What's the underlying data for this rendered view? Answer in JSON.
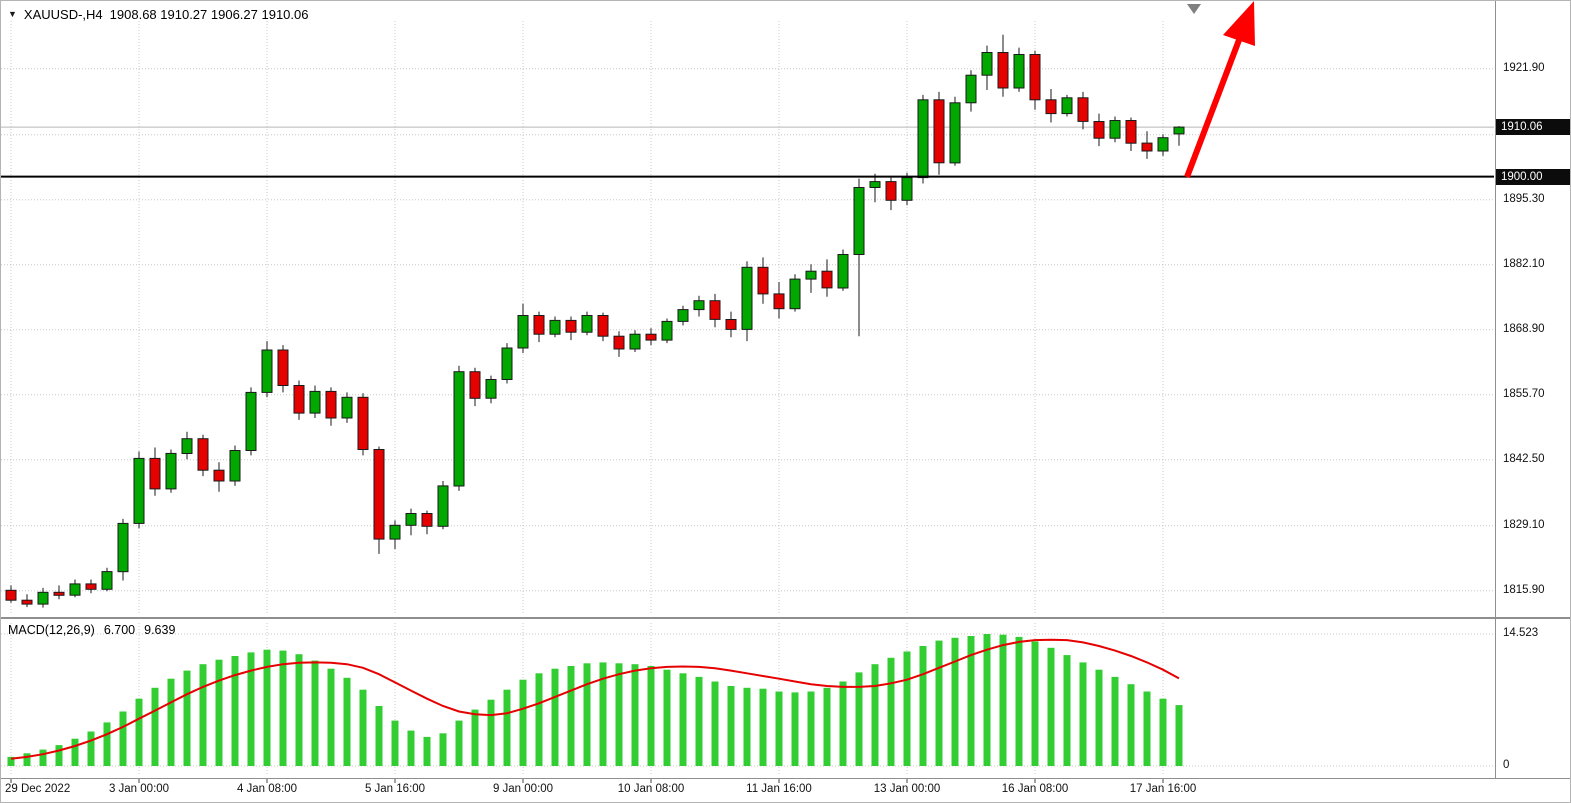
{
  "colors": {
    "bull": "#00a800",
    "bear": "#e60000",
    "wick": "#1a1a1a",
    "grid": "#c8c8c8",
    "macd_hist": "#32cd32",
    "macd_signal": "#e60000",
    "level_line": "#000000",
    "bid_line": "#b8b8b8",
    "badge_bg": "#0c0c0c",
    "badge_text": "#ffffff",
    "arrow": "#ff0000",
    "marker": "#808080",
    "axis_text": "#111111"
  },
  "header": {
    "symbol_marker": "▼",
    "title": "XAUUSD-,H4",
    "ohlc": "1908.68 1910.27 1906.27 1910.06"
  },
  "price_axis": {
    "labels": [
      {
        "text": "1921.90",
        "value": 1921.9
      },
      {
        "text": "1895.30",
        "value": 1895.3
      },
      {
        "text": "1882.10",
        "value": 1882.1
      },
      {
        "text": "1868.90",
        "value": 1868.9
      },
      {
        "text": "1855.70",
        "value": 1855.7
      },
      {
        "text": "1842.50",
        "value": 1842.5
      },
      {
        "text": "1829.10",
        "value": 1829.1
      },
      {
        "text": "1815.90",
        "value": 1815.9
      }
    ],
    "badges": [
      {
        "text": "1910.06",
        "value": 1910.06
      },
      {
        "text": "1900.00",
        "value": 1900.0
      }
    ]
  },
  "macd_panel": {
    "label": "MACD(12,26,9)",
    "value_main": "6.700",
    "value_signal": "9.639",
    "axis_labels": [
      {
        "text": "14.523",
        "value": 14.523
      },
      {
        "text": "0",
        "value": 0
      }
    ]
  },
  "time_axis": {
    "labels": [
      {
        "text": "29 Dec 2022",
        "index": 0
      },
      {
        "text": "3 Jan 00:00",
        "index": 8
      },
      {
        "text": "4 Jan 08:00",
        "index": 16
      },
      {
        "text": "5 Jan 16:00",
        "index": 24
      },
      {
        "text": "9 Jan 00:00",
        "index": 32
      },
      {
        "text": "10 Jan 08:00",
        "index": 40
      },
      {
        "text": "11 Jan 16:00",
        "index": 48
      },
      {
        "text": "13 Jan 00:00",
        "index": 56
      },
      {
        "text": "16 Jan 08:00",
        "index": 64
      },
      {
        "text": "17 Jan 16:00",
        "index": 72
      }
    ]
  },
  "annotations": {
    "trend_arrow": {
      "shape": "arrow",
      "direction": "up",
      "color": "#ff0000"
    },
    "chart_shift_marker": {
      "shape": "triangle-down",
      "color": "#808080"
    }
  },
  "chart_data": [
    {
      "type": "candlestick",
      "symbol": "XAUUSD-",
      "timeframe": "H4",
      "ylim": [
        1811.4,
        1931.6
      ],
      "grid_levels": [
        1921.9,
        1908.5,
        1895.3,
        1882.1,
        1868.9,
        1855.7,
        1842.5,
        1829.1,
        1815.9
      ],
      "levels": {
        "horizontal_line": 1900.0,
        "current_price": 1910.06
      },
      "current_ohlc": {
        "open": 1908.68,
        "high": 1910.27,
        "low": 1906.27,
        "close": 1910.06
      },
      "candles": [
        [
          1816.0,
          1817.0,
          1813.5,
          1814.0
        ],
        [
          1814.0,
          1815.2,
          1812.6,
          1813.2
        ],
        [
          1813.2,
          1816.5,
          1812.5,
          1815.6
        ],
        [
          1815.6,
          1817.0,
          1814.2,
          1815.0
        ],
        [
          1815.0,
          1818.2,
          1814.6,
          1817.3
        ],
        [
          1817.3,
          1818.2,
          1815.4,
          1816.2
        ],
        [
          1816.2,
          1820.6,
          1815.8,
          1819.8
        ],
        [
          1819.8,
          1830.5,
          1818.0,
          1829.6
        ],
        [
          1829.6,
          1844.2,
          1828.6,
          1842.8
        ],
        [
          1842.8,
          1845.0,
          1835.2,
          1836.6
        ],
        [
          1836.6,
          1844.6,
          1835.8,
          1843.8
        ],
        [
          1843.8,
          1848.2,
          1842.6,
          1846.8
        ],
        [
          1846.8,
          1847.6,
          1839.2,
          1840.4
        ],
        [
          1840.4,
          1842.0,
          1836.0,
          1838.2
        ],
        [
          1838.2,
          1845.4,
          1837.2,
          1844.4
        ],
        [
          1844.4,
          1857.2,
          1843.4,
          1856.2
        ],
        [
          1856.2,
          1866.6,
          1855.2,
          1864.8
        ],
        [
          1864.8,
          1865.8,
          1856.2,
          1857.6
        ],
        [
          1857.6,
          1858.6,
          1850.6,
          1852.0
        ],
        [
          1852.0,
          1857.6,
          1851.0,
          1856.4
        ],
        [
          1856.4,
          1857.2,
          1849.4,
          1851.0
        ],
        [
          1851.0,
          1856.2,
          1850.0,
          1855.2
        ],
        [
          1855.2,
          1856.0,
          1843.4,
          1844.6
        ],
        [
          1844.6,
          1845.2,
          1823.4,
          1826.4
        ],
        [
          1826.4,
          1830.2,
          1824.4,
          1829.2
        ],
        [
          1829.2,
          1832.6,
          1827.2,
          1831.6
        ],
        [
          1831.6,
          1832.2,
          1827.4,
          1829.0
        ],
        [
          1829.0,
          1838.2,
          1828.4,
          1837.2
        ],
        [
          1837.2,
          1861.6,
          1836.2,
          1860.4
        ],
        [
          1860.4,
          1861.2,
          1853.4,
          1855.0
        ],
        [
          1855.0,
          1859.6,
          1854.0,
          1858.8
        ],
        [
          1858.8,
          1866.2,
          1858.0,
          1865.2
        ],
        [
          1865.2,
          1874.2,
          1864.2,
          1871.8
        ],
        [
          1871.8,
          1872.6,
          1866.4,
          1868.0
        ],
        [
          1868.0,
          1871.6,
          1867.4,
          1870.8
        ],
        [
          1870.8,
          1871.6,
          1866.8,
          1868.4
        ],
        [
          1868.4,
          1872.6,
          1867.8,
          1871.8
        ],
        [
          1871.8,
          1872.4,
          1866.6,
          1867.6
        ],
        [
          1867.6,
          1868.6,
          1863.4,
          1865.0
        ],
        [
          1865.0,
          1868.8,
          1864.4,
          1868.0
        ],
        [
          1868.0,
          1869.2,
          1865.8,
          1866.8
        ],
        [
          1866.8,
          1871.2,
          1866.2,
          1870.6
        ],
        [
          1870.6,
          1873.8,
          1869.8,
          1873.0
        ],
        [
          1873.0,
          1875.8,
          1871.6,
          1874.8
        ],
        [
          1874.8,
          1876.2,
          1869.4,
          1871.0
        ],
        [
          1871.0,
          1872.6,
          1867.4,
          1869.0
        ],
        [
          1869.0,
          1882.8,
          1866.6,
          1881.6
        ],
        [
          1881.6,
          1883.6,
          1874.2,
          1876.2
        ],
        [
          1876.2,
          1878.6,
          1871.2,
          1873.2
        ],
        [
          1873.2,
          1880.2,
          1872.6,
          1879.2
        ],
        [
          1879.2,
          1882.2,
          1876.4,
          1880.8
        ],
        [
          1880.8,
          1883.2,
          1875.6,
          1877.4
        ],
        [
          1877.4,
          1885.2,
          1876.8,
          1884.2
        ],
        [
          1884.2,
          1899.6,
          1867.6,
          1897.8
        ],
        [
          1897.8,
          1900.6,
          1894.8,
          1899.0
        ],
        [
          1899.0,
          1899.8,
          1893.2,
          1895.2
        ],
        [
          1895.2,
          1900.8,
          1894.2,
          1899.8
        ],
        [
          1899.8,
          1916.6,
          1898.6,
          1915.6
        ],
        [
          1915.6,
          1917.2,
          1900.4,
          1902.8
        ],
        [
          1902.8,
          1916.2,
          1902.2,
          1915.0
        ],
        [
          1915.0,
          1921.6,
          1913.2,
          1920.6
        ],
        [
          1920.6,
          1926.6,
          1917.6,
          1925.2
        ],
        [
          1925.2,
          1928.8,
          1916.2,
          1918.0
        ],
        [
          1918.0,
          1926.2,
          1917.2,
          1924.8
        ],
        [
          1924.8,
          1925.6,
          1913.6,
          1915.6
        ],
        [
          1915.6,
          1917.8,
          1911.0,
          1912.8
        ],
        [
          1912.8,
          1916.6,
          1912.2,
          1916.0
        ],
        [
          1916.0,
          1917.2,
          1909.6,
          1911.2
        ],
        [
          1911.2,
          1912.8,
          1906.2,
          1907.8
        ],
        [
          1907.8,
          1912.2,
          1907.0,
          1911.4
        ],
        [
          1911.4,
          1912.0,
          1905.2,
          1906.8
        ],
        [
          1906.8,
          1909.2,
          1903.6,
          1905.2
        ],
        [
          1905.2,
          1908.6,
          1904.2,
          1907.9
        ],
        [
          1908.68,
          1910.27,
          1906.27,
          1910.06
        ]
      ]
    },
    {
      "type": "bar",
      "name": "MACD(12,26,9)",
      "ylim": [
        0,
        15.9
      ],
      "last_main": 6.7,
      "last_signal": 9.639,
      "histogram": [
        1.0,
        1.4,
        1.8,
        2.3,
        3.0,
        3.8,
        4.8,
        6.0,
        7.4,
        8.6,
        9.6,
        10.5,
        11.2,
        11.7,
        12.1,
        12.5,
        12.8,
        12.7,
        12.3,
        11.6,
        10.7,
        9.7,
        8.4,
        6.6,
        5.0,
        3.9,
        3.2,
        3.6,
        5.0,
        6.2,
        7.3,
        8.4,
        9.5,
        10.2,
        10.7,
        11.0,
        11.3,
        11.4,
        11.3,
        11.2,
        11.0,
        10.6,
        10.2,
        9.8,
        9.3,
        8.8,
        8.6,
        8.5,
        8.2,
        8.1,
        8.2,
        8.6,
        9.3,
        10.3,
        11.2,
        11.9,
        12.6,
        13.2,
        13.8,
        14.1,
        14.3,
        14.52,
        14.45,
        14.2,
        13.7,
        13.0,
        12.2,
        11.4,
        10.6,
        9.8,
        9.0,
        8.2,
        7.4,
        6.7
      ],
      "signal": [
        0.8,
        1.0,
        1.3,
        1.7,
        2.2,
        2.8,
        3.5,
        4.3,
        5.2,
        6.1,
        7.0,
        7.9,
        8.7,
        9.4,
        10.0,
        10.5,
        10.9,
        11.2,
        11.35,
        11.4,
        11.35,
        11.2,
        10.8,
        10.1,
        9.2,
        8.3,
        7.4,
        6.6,
        6.0,
        5.7,
        5.6,
        5.8,
        6.3,
        6.9,
        7.6,
        8.3,
        9.0,
        9.6,
        10.1,
        10.5,
        10.75,
        10.9,
        10.95,
        10.9,
        10.75,
        10.5,
        10.2,
        9.9,
        9.6,
        9.3,
        9.0,
        8.8,
        8.7,
        8.7,
        8.8,
        9.1,
        9.5,
        10.1,
        10.8,
        11.5,
        12.2,
        12.8,
        13.3,
        13.65,
        13.85,
        13.9,
        13.85,
        13.6,
        13.2,
        12.7,
        12.1,
        11.4,
        10.6,
        9.639
      ]
    }
  ]
}
